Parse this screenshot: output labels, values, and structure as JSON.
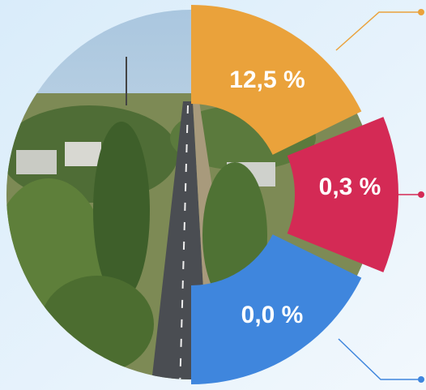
{
  "segments": [
    {
      "label": "12,5 %",
      "color": "#eaa23b"
    },
    {
      "label": "0,3 %",
      "color": "#d42a55"
    },
    {
      "label": "0,0 %",
      "color": "#3f86dd"
    }
  ]
}
